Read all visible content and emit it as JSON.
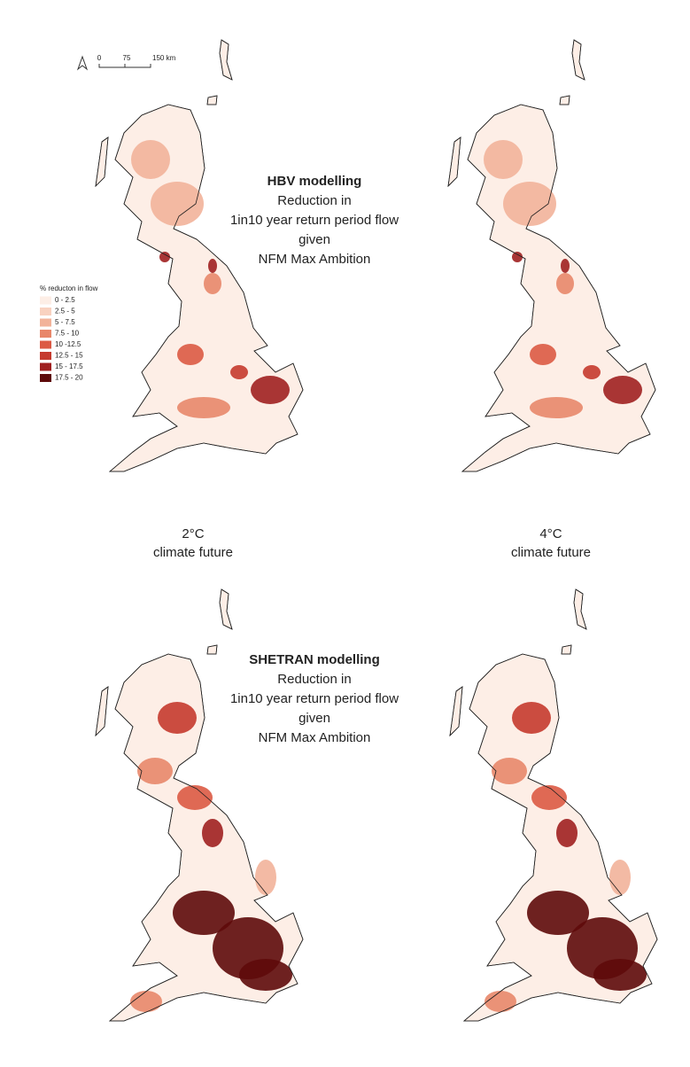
{
  "scale_bar": {
    "labels": [
      "0",
      "75",
      "150 km"
    ]
  },
  "legend": {
    "title": "% reducton in flow",
    "items": [
      {
        "label": "0 - 2.5",
        "color": "#fdeee6"
      },
      {
        "label": "2.5 - 5",
        "color": "#f9d2c0"
      },
      {
        "label": "5 - 7.5",
        "color": "#f2b39a"
      },
      {
        "label": "7.5 - 10",
        "color": "#e8876a"
      },
      {
        "label": "10 -12.5",
        "color": "#dc5a44"
      },
      {
        "label": "12.5 - 15",
        "color": "#c53a2e"
      },
      {
        "label": "15 - 17.5",
        "color": "#a02020"
      },
      {
        "label": "17.5 - 20",
        "color": "#5e0a0a"
      }
    ]
  },
  "panels": [
    {
      "title": "HBV modelling",
      "lines": [
        "Reduction in",
        "1in10 year return period flow",
        "given",
        "NFM Max Ambition"
      ]
    },
    {
      "title": "SHETRAN modelling",
      "lines": [
        "Reduction in",
        "1in10 year return period flow",
        "given",
        "NFM Max Ambition"
      ]
    }
  ],
  "climates": [
    {
      "lines": [
        "2°C",
        "climate future"
      ]
    },
    {
      "lines": [
        "4°C",
        "climate future"
      ]
    }
  ]
}
